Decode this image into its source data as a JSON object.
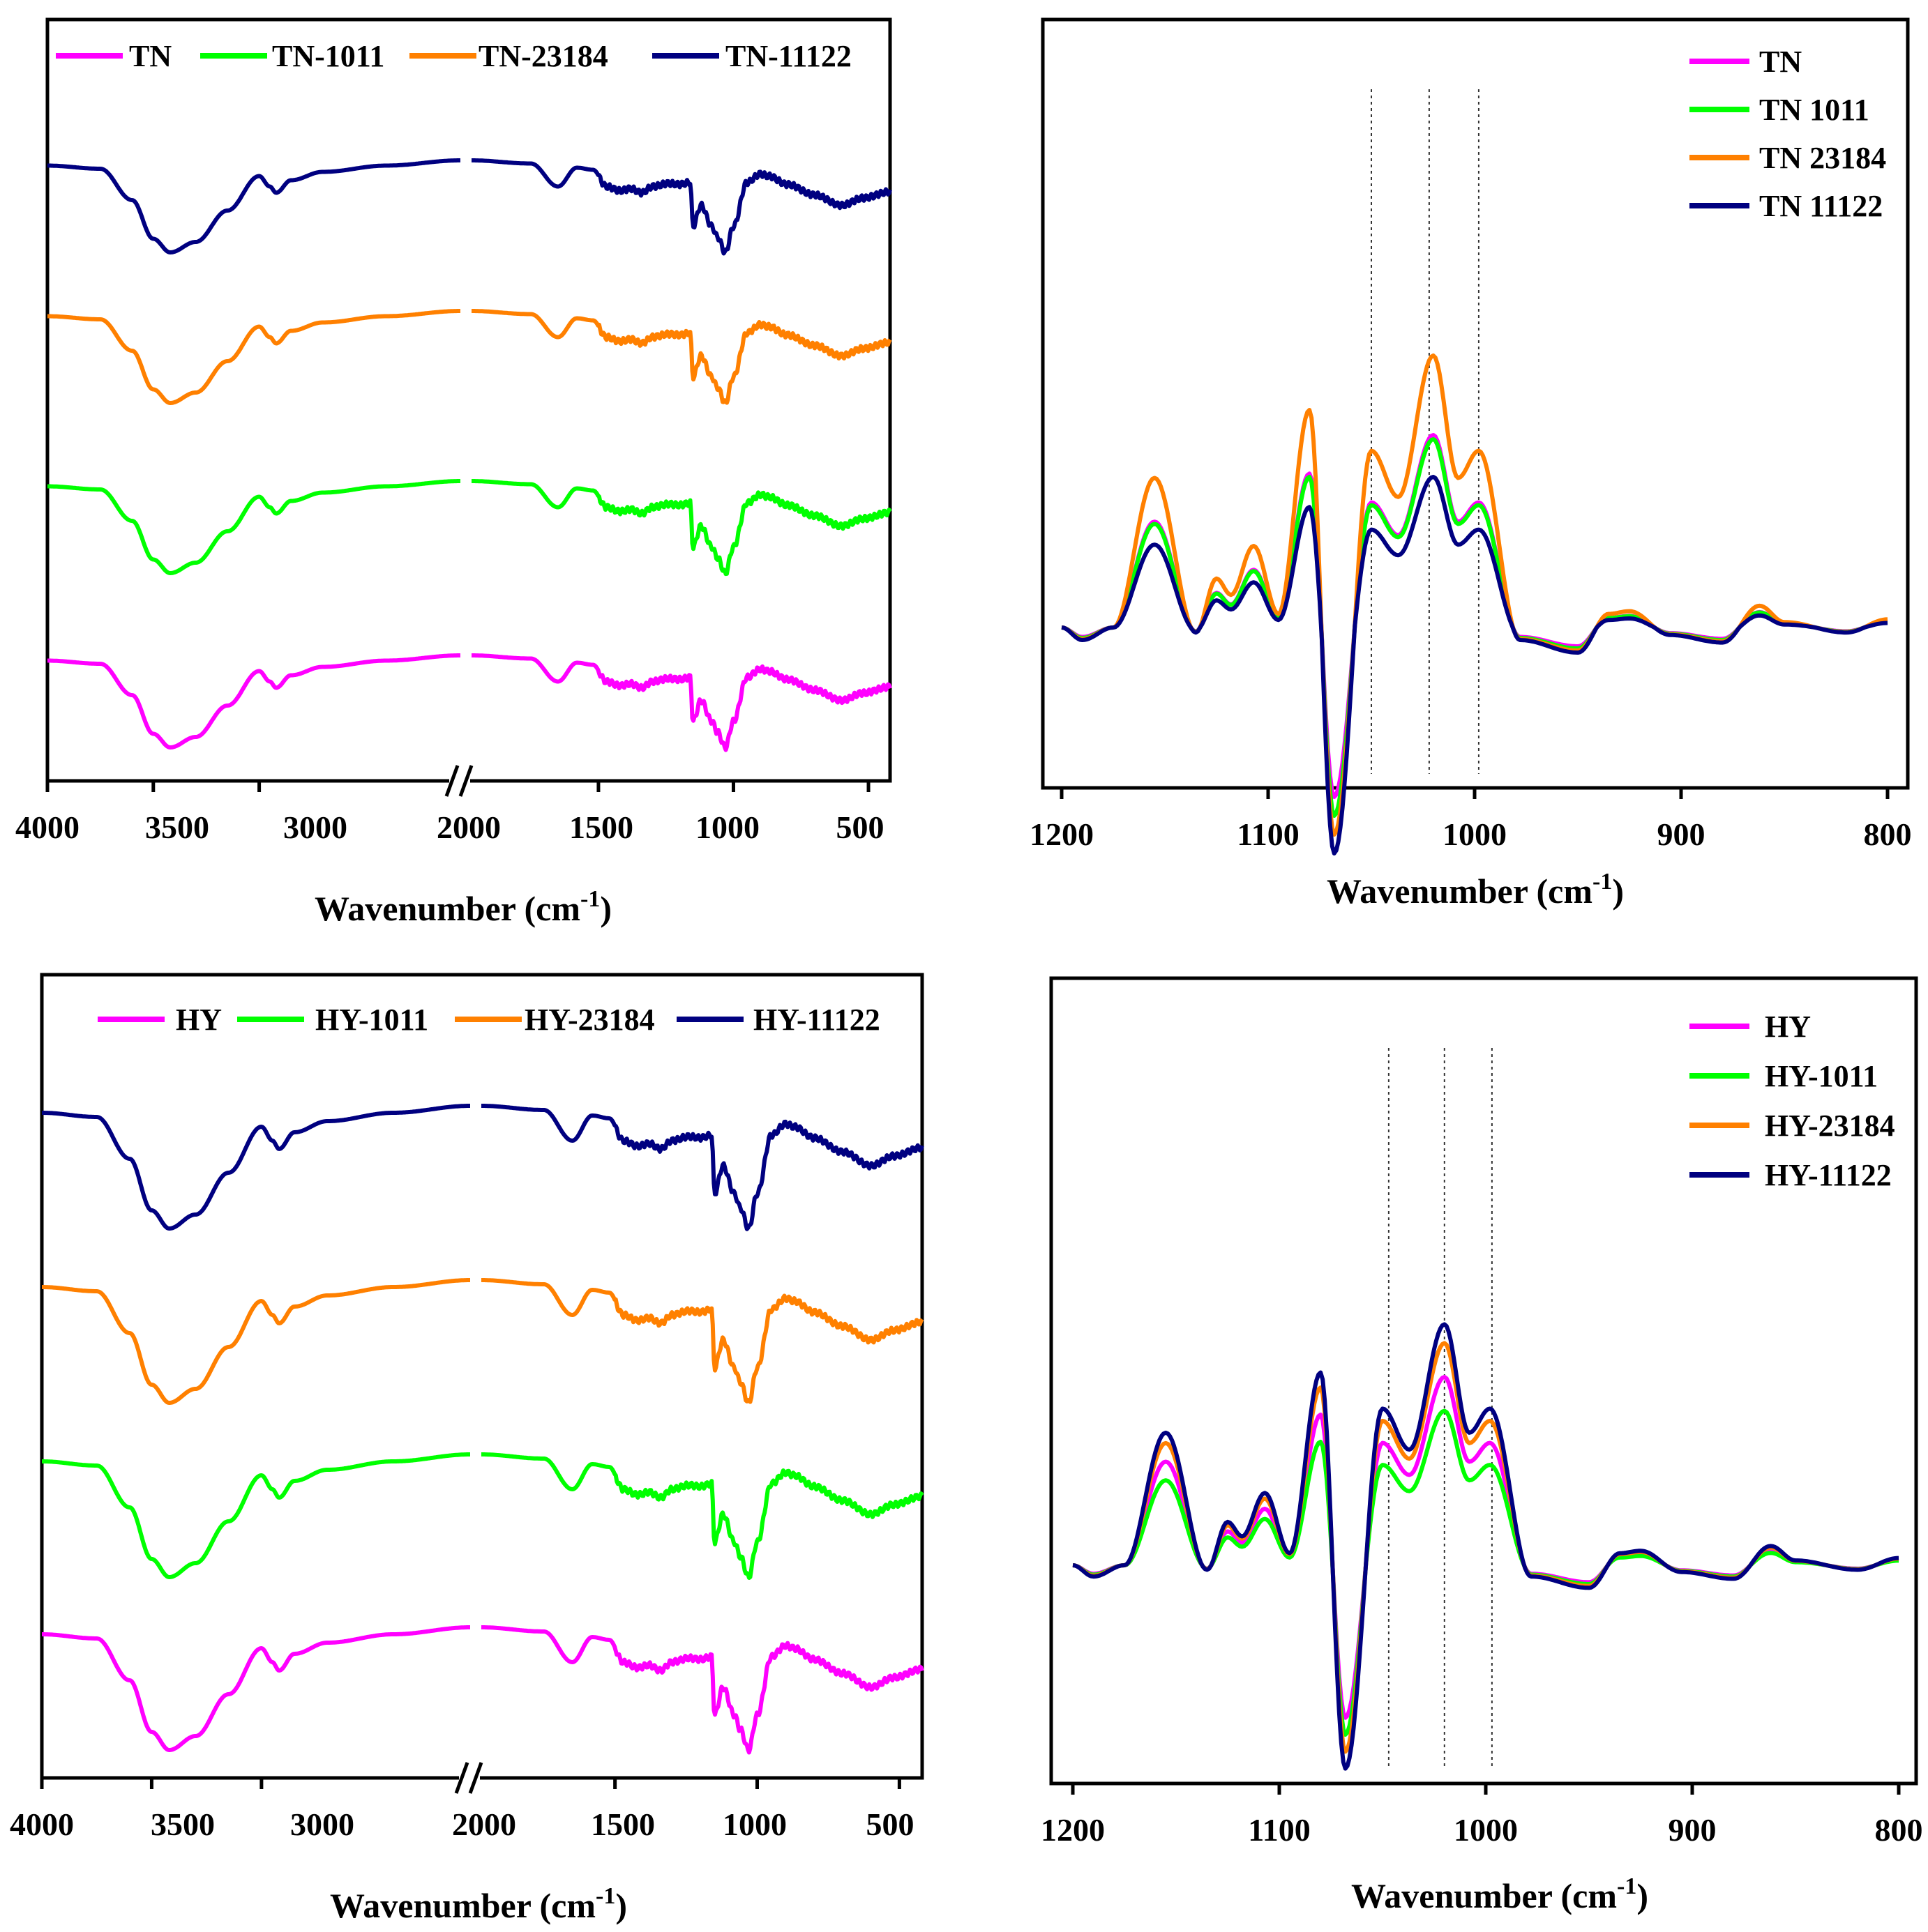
{
  "chart_data": [
    {
      "panel": "top-left",
      "type": "line",
      "xlabel": "Wavenumber (cm-1)",
      "xlabel_parts": {
        "main": "Wavenumber (cm",
        "sup": "-1",
        "close": ")"
      },
      "broken_x_axis": true,
      "segments": [
        [
          4000,
          2050
        ],
        [
          1970,
          420
        ]
      ],
      "ticks": [
        4000,
        3500,
        3000,
        2000,
        1500,
        1000,
        500
      ],
      "tick_labels": [
        "4000",
        "3500",
        "3000",
        "2000",
        "1500",
        "1000",
        "500"
      ],
      "yaxis": "offset stacked, no labels",
      "legend_position": "top",
      "legend_layout": "horizontal",
      "series": [
        {
          "name": "TN",
          "color": "#ff00ff",
          "offset": 0
        },
        {
          "name": "TN-1011",
          "color": "#00ff00",
          "offset": 1
        },
        {
          "name": "TN-23184",
          "color": "#ff8000",
          "offset": 2
        },
        {
          "name": "TN-11122",
          "color": "#000080",
          "offset": 3
        }
      ],
      "spectrum_shape": [
        [
          4000,
          0.02
        ],
        [
          3750,
          0.05
        ],
        [
          3600,
          0.35
        ],
        [
          3500,
          0.72
        ],
        [
          3420,
          0.85
        ],
        [
          3300,
          0.75
        ],
        [
          3150,
          0.45
        ],
        [
          3000,
          0.12
        ],
        [
          2950,
          0.22
        ],
        [
          2920,
          0.28
        ],
        [
          2850,
          0.16
        ],
        [
          2700,
          0.08
        ],
        [
          2400,
          0.02
        ],
        [
          2050,
          -0.03
        ],
        [
          1970,
          -0.03
        ],
        [
          1750,
          0.0
        ],
        [
          1650,
          0.22
        ],
        [
          1580,
          0.04
        ],
        [
          1520,
          0.06
        ],
        [
          1470,
          0.22
        ],
        [
          1420,
          0.26
        ],
        [
          1380,
          0.24
        ],
        [
          1340,
          0.28
        ],
        [
          1300,
          0.22
        ],
        [
          1240,
          0.19
        ],
        [
          1200,
          0.2
        ],
        [
          1160,
          0.18
        ],
        [
          1150,
          0.6
        ],
        [
          1120,
          0.4
        ],
        [
          1080,
          0.6
        ],
        [
          1060,
          0.7
        ],
        [
          1030,
          0.85
        ],
        [
          1000,
          0.6
        ],
        [
          950,
          0.18
        ],
        [
          900,
          0.1
        ],
        [
          870,
          0.12
        ],
        [
          800,
          0.2
        ],
        [
          700,
          0.3
        ],
        [
          600,
          0.4
        ],
        [
          520,
          0.33
        ],
        [
          420,
          0.27
        ]
      ]
    },
    {
      "panel": "top-right",
      "type": "line",
      "xlabel": "Wavenumber (cm-1)",
      "xlabel_parts": {
        "main": "Wavenumber (cm",
        "sup": "-1",
        "close": ")"
      },
      "xlim": [
        1200,
        800
      ],
      "ticks": [
        1200,
        1100,
        1000,
        900,
        800
      ],
      "tick_labels": [
        "1200",
        "1100",
        "1000",
        "900",
        "800"
      ],
      "yaxis": "second derivative, no labels",
      "reference_lines": [
        1050,
        1022,
        998
      ],
      "legend_position": "top-right",
      "legend_layout": "vertical",
      "series": [
        {
          "name": "TN",
          "color": "#ff00ff",
          "scale": 0.92
        },
        {
          "name": "TN 1011",
          "color": "#00ff00",
          "scale": 0.9
        },
        {
          "name": "TN 23184",
          "color": "#ff8000",
          "scale": 1.3
        },
        {
          "name": "TN 11122",
          "color": "#000080",
          "scale": 0.72
        }
      ],
      "derivative_shape": [
        [
          1200,
          0.0
        ],
        [
          1190,
          -0.05
        ],
        [
          1175,
          0.0
        ],
        [
          1155,
          0.55
        ],
        [
          1135,
          -0.02
        ],
        [
          1125,
          0.18
        ],
        [
          1118,
          0.12
        ],
        [
          1107,
          0.3
        ],
        [
          1095,
          0.05
        ],
        [
          1080,
          0.8
        ],
        [
          1068,
          -0.9
        ],
        [
          1050,
          0.65
        ],
        [
          1037,
          0.48
        ],
        [
          1020,
          1.0
        ],
        [
          1008,
          0.55
        ],
        [
          998,
          0.65
        ],
        [
          978,
          -0.05
        ],
        [
          950,
          -0.1
        ],
        [
          935,
          0.05
        ],
        [
          925,
          0.06
        ],
        [
          905,
          -0.03
        ],
        [
          880,
          -0.06
        ],
        [
          862,
          0.08
        ],
        [
          850,
          0.02
        ],
        [
          820,
          -0.02
        ],
        [
          800,
          0.03
        ]
      ]
    },
    {
      "panel": "bottom-left",
      "type": "line",
      "xlabel": "Wavenumber (cm-1)",
      "xlabel_parts": {
        "main": "Wavenumber (cm",
        "sup": "-1",
        "close": ")"
      },
      "broken_x_axis": true,
      "segments": [
        [
          4000,
          2050
        ],
        [
          1970,
          420
        ]
      ],
      "ticks": [
        4000,
        3500,
        3000,
        2000,
        1500,
        1000,
        500
      ],
      "tick_labels": [
        "4000",
        "3500",
        "3000",
        "2000",
        "1500",
        "1000",
        "500"
      ],
      "yaxis": "offset stacked, no labels",
      "legend_position": "top",
      "legend_layout": "horizontal",
      "series": [
        {
          "name": "HY",
          "color": "#ff00ff",
          "offset": 0
        },
        {
          "name": "HY-1011",
          "color": "#00ff00",
          "offset": 1
        },
        {
          "name": "HY-23184",
          "color": "#ff8000",
          "offset": 2
        },
        {
          "name": "HY-11122",
          "color": "#000080",
          "offset": 3
        }
      ],
      "spectrum_shape": [
        [
          4000,
          0.02
        ],
        [
          3750,
          0.05
        ],
        [
          3600,
          0.35
        ],
        [
          3500,
          0.72
        ],
        [
          3420,
          0.85
        ],
        [
          3300,
          0.75
        ],
        [
          3150,
          0.45
        ],
        [
          3000,
          0.12
        ],
        [
          2950,
          0.22
        ],
        [
          2920,
          0.28
        ],
        [
          2850,
          0.16
        ],
        [
          2700,
          0.08
        ],
        [
          2400,
          0.02
        ],
        [
          2050,
          -0.03
        ],
        [
          1970,
          -0.03
        ],
        [
          1750,
          0.0
        ],
        [
          1650,
          0.22
        ],
        [
          1580,
          0.04
        ],
        [
          1520,
          0.06
        ],
        [
          1470,
          0.22
        ],
        [
          1420,
          0.26
        ],
        [
          1380,
          0.24
        ],
        [
          1340,
          0.28
        ],
        [
          1300,
          0.22
        ],
        [
          1240,
          0.19
        ],
        [
          1200,
          0.2
        ],
        [
          1160,
          0.18
        ],
        [
          1150,
          0.6
        ],
        [
          1120,
          0.4
        ],
        [
          1080,
          0.6
        ],
        [
          1060,
          0.7
        ],
        [
          1030,
          0.85
        ],
        [
          1000,
          0.6
        ],
        [
          950,
          0.18
        ],
        [
          900,
          0.1
        ],
        [
          870,
          0.12
        ],
        [
          800,
          0.2
        ],
        [
          700,
          0.3
        ],
        [
          600,
          0.4
        ],
        [
          520,
          0.33
        ],
        [
          420,
          0.27
        ]
      ]
    },
    {
      "panel": "bottom-right",
      "type": "line",
      "xlabel": "Wavenumber (cm-1)",
      "xlabel_parts": {
        "main": "Wavenumber (cm",
        "sup": "-1",
        "close": ")"
      },
      "xlim": [
        1200,
        800
      ],
      "ticks": [
        1200,
        1100,
        1000,
        900,
        800
      ],
      "tick_labels": [
        "1200",
        "1100",
        "1000",
        "900",
        "800"
      ],
      "yaxis": "second derivative, no labels",
      "reference_lines": [
        1047,
        1020,
        997
      ],
      "legend_position": "top-right",
      "legend_layout": "vertical",
      "series": [
        {
          "name": "HY",
          "color": "#ff00ff",
          "scale": 1.0
        },
        {
          "name": "HY-1011",
          "color": "#00ff00",
          "scale": 0.82
        },
        {
          "name": "HY-23184",
          "color": "#ff8000",
          "scale": 1.18
        },
        {
          "name": "HY-11122",
          "color": "#000080",
          "scale": 1.28
        }
      ],
      "derivative_shape": [
        [
          1200,
          0.0
        ],
        [
          1190,
          -0.05
        ],
        [
          1175,
          0.0
        ],
        [
          1155,
          0.55
        ],
        [
          1135,
          -0.02
        ],
        [
          1125,
          0.18
        ],
        [
          1118,
          0.12
        ],
        [
          1107,
          0.3
        ],
        [
          1095,
          0.05
        ],
        [
          1080,
          0.8
        ],
        [
          1068,
          -0.9
        ],
        [
          1050,
          0.65
        ],
        [
          1037,
          0.48
        ],
        [
          1020,
          1.0
        ],
        [
          1008,
          0.55
        ],
        [
          998,
          0.65
        ],
        [
          978,
          -0.05
        ],
        [
          950,
          -0.1
        ],
        [
          935,
          0.05
        ],
        [
          925,
          0.06
        ],
        [
          905,
          -0.03
        ],
        [
          880,
          -0.06
        ],
        [
          862,
          0.08
        ],
        [
          850,
          0.02
        ],
        [
          820,
          -0.02
        ],
        [
          800,
          0.03
        ]
      ]
    }
  ]
}
